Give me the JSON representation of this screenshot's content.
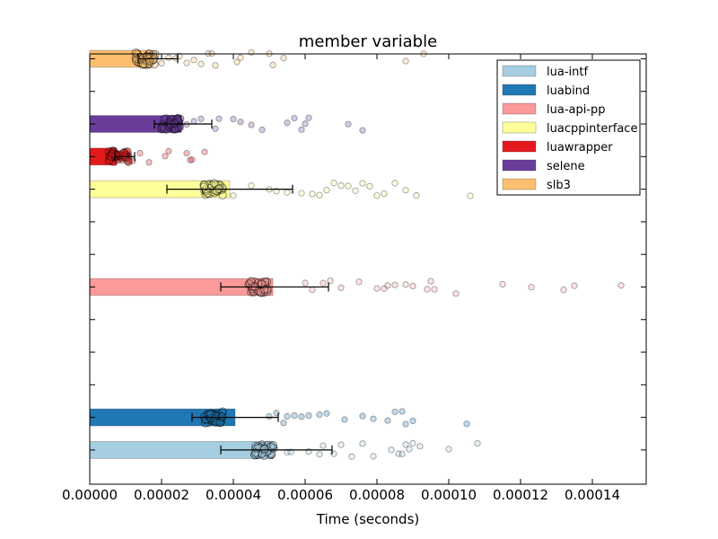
{
  "chart_data": {
    "type": "bar",
    "orientation": "horizontal",
    "title": "member variable",
    "xlabel": "Time (seconds)",
    "ylabel": "",
    "xlim": [
      0,
      0.000155
    ],
    "x_ticks": [
      "0.00000",
      "0.00002",
      "0.00004",
      "0.00006",
      "0.00008",
      "0.00010",
      "0.00012",
      "0.00014"
    ],
    "x_tick_values": [
      0,
      2e-05,
      4e-05,
      6e-05,
      8e-05,
      0.0001,
      0.00012,
      0.00014
    ],
    "grid": false,
    "legend_position": "top-right",
    "series": [
      {
        "name": "lua-intf",
        "color": "#a6cee3",
        "value": 5.1e-05,
        "error_low": 3.65e-05,
        "error_high": 6.75e-05,
        "cluster": 4.85e-05,
        "points": [
          5.5e-05,
          5.6e-05,
          6.1e-05,
          6.4e-05,
          6.5e-05,
          6.8e-05,
          7e-05,
          7.3e-05,
          7.6e-05,
          7.9e-05,
          8.4e-05,
          8.6e-05,
          8.7e-05,
          8.8e-05,
          8.9e-05,
          9e-05,
          9.2e-05,
          0.0001,
          0.000108
        ]
      },
      {
        "name": "luabind",
        "color": "#1f78b4",
        "value": 4.05e-05,
        "error_low": 2.85e-05,
        "error_high": 5.25e-05,
        "cluster": 3.45e-05,
        "points": [
          5e-05,
          5.2e-05,
          5.4e-05,
          5.5e-05,
          5.7e-05,
          5.9e-05,
          6.1e-05,
          6.4e-05,
          6.6e-05,
          7.1e-05,
          7.6e-05,
          7.9e-05,
          8.3e-05,
          8.5e-05,
          8.7e-05,
          8.8e-05,
          9e-05,
          0.000105
        ]
      },
      {
        "name": "lua-api-pp",
        "color": "#fb9a99",
        "value": 5.1e-05,
        "error_low": 3.65e-05,
        "error_high": 6.65e-05,
        "cluster": 4.7e-05,
        "points": [
          6e-05,
          6.2e-05,
          6.5e-05,
          6.7e-05,
          7e-05,
          7.5e-05,
          8e-05,
          8.2e-05,
          8.3e-05,
          8.5e-05,
          8.8e-05,
          9e-05,
          9.4e-05,
          9.5e-05,
          9.6e-05,
          0.000102,
          0.000115,
          0.000123,
          0.000132,
          0.000135,
          0.000148
        ]
      },
      {
        "name": "luacppinterface",
        "color": "#ffff99",
        "value": 3.9e-05,
        "error_low": 2.15e-05,
        "error_high": 5.65e-05,
        "cluster": 3.45e-05,
        "points": [
          4e-05,
          4.5e-05,
          5e-05,
          5.2e-05,
          5.5e-05,
          5.9e-05,
          6.2e-05,
          6.4e-05,
          6.6e-05,
          6.8e-05,
          7e-05,
          7.2e-05,
          7.4e-05,
          7.6e-05,
          7.8e-05,
          8e-05,
          8.2e-05,
          8.5e-05,
          8.8e-05,
          9.1e-05,
          0.000106
        ]
      },
      {
        "name": "luawrapper",
        "color": "#e31a1c",
        "value": 7.5e-06,
        "error_low": 7e-06,
        "error_high": 1.25e-05,
        "cluster": 8e-06,
        "points": [
          1.05e-05,
          1.1e-05,
          1.2e-05,
          1.4e-05,
          1.65e-05,
          2.1e-05,
          2.2e-05,
          2.7e-05,
          2.8e-05,
          2.85e-05,
          3.2e-05
        ]
      },
      {
        "name": "selene",
        "color": "#6a3d9a",
        "value": 2.55e-05,
        "error_low": 1.8e-05,
        "error_high": 3.4e-05,
        "cluster": 2.25e-05,
        "points": [
          2.7e-05,
          2.9e-05,
          3.1e-05,
          3.5e-05,
          3.6e-05,
          4e-05,
          4.2e-05,
          4.5e-05,
          4.8e-05,
          5.5e-05,
          5.7e-05,
          5.9e-05,
          6e-05,
          6.1e-05,
          7.2e-05,
          7.6e-05
        ]
      },
      {
        "name": "slb3",
        "color": "#fdbf6f",
        "value": 1.6e-05,
        "error_low": 1.35e-05,
        "error_high": 2.45e-05,
        "cluster": 1.55e-05,
        "points": [
          1.8e-05,
          2e-05,
          2.2e-05,
          2.4e-05,
          2.5e-05,
          2.7e-05,
          2.9e-05,
          3.1e-05,
          3.3e-05,
          3.4e-05,
          3.5e-05,
          4.1e-05,
          4.2e-05,
          4.5e-05,
          5e-05,
          5.1e-05,
          5.4e-05,
          8.8e-05,
          9.3e-05
        ]
      }
    ]
  }
}
